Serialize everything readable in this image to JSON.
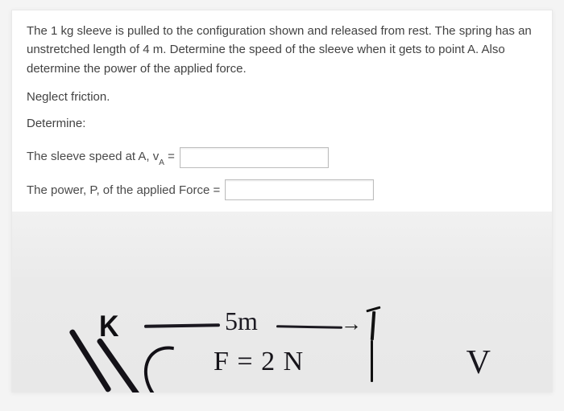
{
  "problem": {
    "statement": "The 1 kg sleeve is pulled to the configuration shown and released from rest. The spring has an unstretched length of 4 m. Determine the speed of the sleeve when it gets to point A. Also determine the power of the applied force.",
    "neglect": "Neglect friction.",
    "determine": "Determine:"
  },
  "answers": {
    "speed": {
      "label_pre": "The sleeve speed at A, v",
      "label_sub": "A",
      "label_post": " =",
      "value": ""
    },
    "power": {
      "label": "The power, P, of the applied Force =",
      "value": ""
    }
  },
  "figure": {
    "dimension_label": "5m",
    "force_label": "F = 2 N",
    "right_symbol": "V",
    "colors": {
      "text": "#424242",
      "page_bg": "#f4f4f4",
      "card_bg": "#ffffff",
      "figure_bg_top": "#f1f1f1",
      "figure_bg_bottom": "#e8e8e8",
      "ink": "#141218",
      "input_border": "#bdbdbd"
    },
    "fontsize": {
      "body": 15,
      "handwriting_large": 34,
      "handwriting_xl": 42
    }
  }
}
